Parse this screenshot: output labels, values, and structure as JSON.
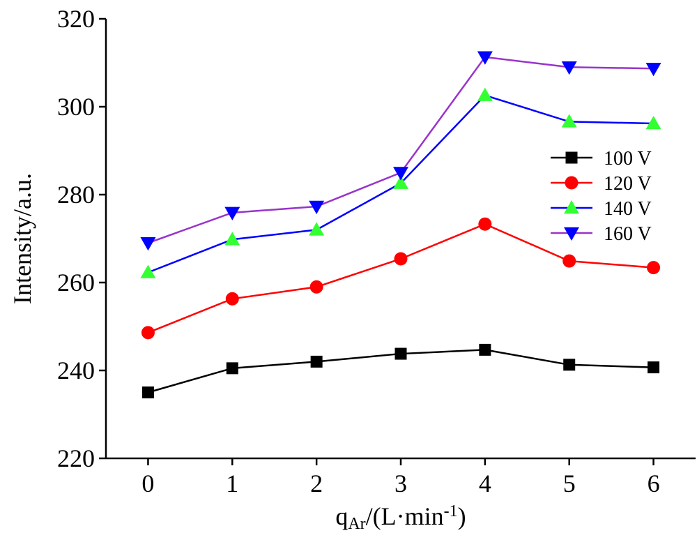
{
  "chart_data": {
    "type": "line",
    "title": "",
    "xlabel": "q",
    "xlabel_sub": "Ar",
    "xlabel_rest": "/(L·min",
    "xlabel_sup": "-1",
    "xlabel_end": ")",
    "ylabel": "Intensity/a.u.",
    "x": [
      0,
      1,
      2,
      3,
      4,
      5,
      6
    ],
    "xlim": [
      -0.5,
      6.5
    ],
    "ylim": [
      220,
      320
    ],
    "x_ticks": [
      "0",
      "1",
      "2",
      "3",
      "4",
      "5",
      "6"
    ],
    "y_ticks": [
      "220",
      "240",
      "260",
      "280",
      "300",
      "320"
    ],
    "grid": false,
    "legend_position": "right",
    "series": [
      {
        "name": "100 V",
        "color": "#000000",
        "marker": "square",
        "values": [
          235.0,
          240.5,
          242.0,
          243.8,
          244.7,
          241.3,
          240.7
        ]
      },
      {
        "name": "120 V",
        "color": "#ff0000",
        "marker": "circle",
        "values": [
          248.6,
          256.3,
          259.0,
          265.4,
          273.3,
          264.9,
          263.4
        ]
      },
      {
        "name": "140 V",
        "color": "#0000ff",
        "marker_color": "#33ff33",
        "marker": "triangle-up",
        "values": [
          262.3,
          269.8,
          272.0,
          282.6,
          302.6,
          296.6,
          296.2
        ]
      },
      {
        "name": "160 V",
        "color": "#9933cc",
        "marker_color": "#0000ff",
        "marker": "triangle-down",
        "values": [
          269.0,
          275.9,
          277.3,
          285.0,
          311.3,
          309.0,
          308.7
        ]
      }
    ]
  }
}
